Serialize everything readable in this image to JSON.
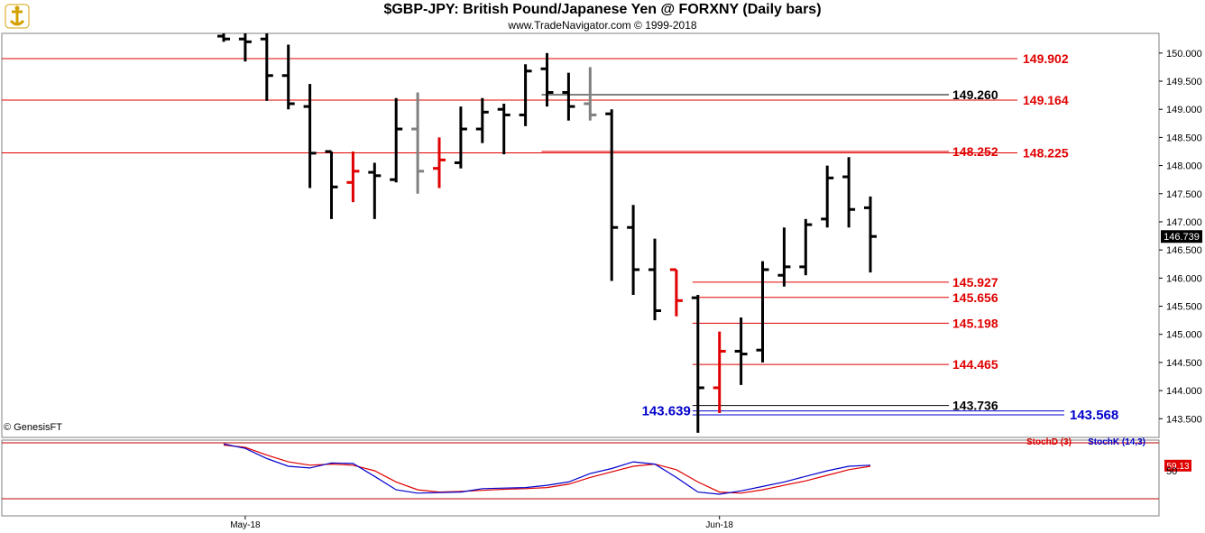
{
  "title": "$GBP-JPY:  British Pound/Japanese Yen @ FORXNY  (Daily bars)",
  "subtitle": "www.TradeNavigator.com © 1999-2018",
  "credit": "© GenesisFT",
  "last_price": "146.739",
  "colors": {
    "bar_up": "#000000",
    "bar_red": "#e00000",
    "bar_gray": "#808080",
    "level_red": "#e00000",
    "level_black": "#000000",
    "level_blue": "#0000cc",
    "stochD": "#e00000",
    "stochK": "#0000cc"
  },
  "chart_data": {
    "type": "ohlc",
    "ylim": [
      143.2,
      150.35
    ],
    "y_ticks": [
      "150.000",
      "149.500",
      "149.000",
      "148.500",
      "148.000",
      "147.500",
      "147.000",
      "146.500",
      "146.000",
      "145.500",
      "145.000",
      "144.500",
      "144.000",
      "143.500"
    ],
    "x_labels": [
      {
        "label": "May-18",
        "index": 1
      },
      {
        "label": "Jun-18",
        "index": 23
      }
    ],
    "bars": [
      {
        "o": 150.3,
        "h": 150.35,
        "l": 150.2,
        "c": 150.25,
        "color": "black"
      },
      {
        "o": 150.25,
        "h": 150.35,
        "l": 149.85,
        "c": 150.2,
        "color": "black"
      },
      {
        "o": 150.25,
        "h": 150.35,
        "l": 149.15,
        "c": 149.6,
        "color": "black"
      },
      {
        "o": 149.6,
        "h": 150.15,
        "l": 149.0,
        "c": 149.1,
        "color": "black"
      },
      {
        "o": 149.05,
        "h": 149.45,
        "l": 147.6,
        "c": 148.22,
        "color": "black"
      },
      {
        "o": 148.25,
        "h": 148.25,
        "l": 147.05,
        "c": 147.62,
        "color": "black"
      },
      {
        "o": 147.7,
        "h": 148.25,
        "l": 147.35,
        "c": 147.9,
        "color": "red"
      },
      {
        "o": 147.88,
        "h": 148.05,
        "l": 147.05,
        "c": 147.82,
        "color": "black"
      },
      {
        "o": 147.75,
        "h": 149.2,
        "l": 147.7,
        "c": 148.65,
        "color": "black"
      },
      {
        "o": 148.65,
        "h": 149.3,
        "l": 147.5,
        "c": 147.9,
        "color": "gray"
      },
      {
        "o": 147.95,
        "h": 148.5,
        "l": 147.6,
        "c": 148.1,
        "color": "red"
      },
      {
        "o": 148.05,
        "h": 149.05,
        "l": 147.95,
        "c": 148.65,
        "color": "black"
      },
      {
        "o": 148.65,
        "h": 149.2,
        "l": 148.4,
        "c": 148.95,
        "color": "black"
      },
      {
        "o": 149.0,
        "h": 149.1,
        "l": 148.2,
        "c": 148.9,
        "color": "black"
      },
      {
        "o": 148.9,
        "h": 149.8,
        "l": 148.7,
        "c": 149.68,
        "color": "black"
      },
      {
        "o": 149.72,
        "h": 150.0,
        "l": 149.05,
        "c": 149.3,
        "color": "black"
      },
      {
        "o": 149.3,
        "h": 149.65,
        "l": 148.8,
        "c": 149.05,
        "color": "black"
      },
      {
        "o": 149.1,
        "h": 149.75,
        "l": 148.8,
        "c": 148.9,
        "color": "gray"
      },
      {
        "o": 148.92,
        "h": 149.0,
        "l": 145.95,
        "c": 146.9,
        "color": "black"
      },
      {
        "o": 146.9,
        "h": 147.3,
        "l": 145.7,
        "c": 146.15,
        "color": "black"
      },
      {
        "o": 146.15,
        "h": 146.7,
        "l": 145.25,
        "c": 145.42,
        "color": "black"
      },
      {
        "o": 146.15,
        "h": 146.15,
        "l": 145.32,
        "c": 145.6,
        "color": "red"
      },
      {
        "o": 145.65,
        "h": 145.7,
        "l": 143.25,
        "c": 144.05,
        "color": "black"
      },
      {
        "o": 144.05,
        "h": 145.05,
        "l": 143.6,
        "c": 144.7,
        "color": "red"
      },
      {
        "o": 144.7,
        "h": 145.3,
        "l": 144.1,
        "c": 144.65,
        "color": "black"
      },
      {
        "o": 144.72,
        "h": 146.3,
        "l": 144.5,
        "c": 146.15,
        "color": "black"
      },
      {
        "o": 146.05,
        "h": 146.9,
        "l": 145.85,
        "c": 146.2,
        "color": "black"
      },
      {
        "o": 146.2,
        "h": 147.05,
        "l": 146.05,
        "c": 146.95,
        "color": "black"
      },
      {
        "o": 147.05,
        "h": 148.0,
        "l": 146.9,
        "c": 147.78,
        "color": "black"
      },
      {
        "o": 147.8,
        "h": 148.15,
        "l": 146.9,
        "c": 147.22,
        "color": "black"
      },
      {
        "o": 147.25,
        "h": 147.45,
        "l": 146.1,
        "c": 146.74,
        "color": "black"
      }
    ],
    "levels": [
      {
        "value": 149.902,
        "label": "149.902",
        "color": "red",
        "start": 0,
        "label_side": "right"
      },
      {
        "value": 149.26,
        "label": "149.260",
        "color": "black",
        "start": 15,
        "label_side": "mid"
      },
      {
        "value": 149.164,
        "label": "149.164",
        "color": "red",
        "start": 0,
        "label_side": "right"
      },
      {
        "value": 148.252,
        "label": "148.252",
        "color": "red",
        "start": 15,
        "label_side": "mid"
      },
      {
        "value": 148.225,
        "label": "148.225",
        "color": "red",
        "start": 0,
        "label_side": "right"
      },
      {
        "value": 145.927,
        "label": "145.927",
        "color": "red",
        "start": 22,
        "label_side": "mid"
      },
      {
        "value": 145.656,
        "label": "145.656",
        "color": "red",
        "start": 22,
        "label_side": "mid"
      },
      {
        "value": 145.198,
        "label": "145.198",
        "color": "red",
        "start": 22,
        "label_side": "mid"
      },
      {
        "value": 144.465,
        "label": "144.465",
        "color": "red",
        "start": 22,
        "label_side": "mid"
      },
      {
        "value": 143.736,
        "label": "143.736",
        "color": "black",
        "start": 22,
        "label_side": "mid"
      },
      {
        "value": 143.639,
        "label": "143.639",
        "color": "blue",
        "start": 22,
        "label_side": "left"
      },
      {
        "value": 143.568,
        "label": "143.568",
        "color": "blue",
        "start": 22,
        "label_side": "right"
      }
    ],
    "stochastic": {
      "legend_d": "StochD (3)",
      "legend_k": "StochK (14,3)",
      "last_value": "59.13",
      "tick": "50",
      "ylim": [
        0,
        100
      ],
      "stochK": [
        98,
        90,
        72,
        58,
        55,
        64,
        63,
        40,
        16,
        10,
        11,
        12,
        18,
        19,
        20,
        24,
        30,
        45,
        54,
        66,
        62,
        38,
        12,
        8,
        14,
        22,
        30,
        40,
        50,
        58,
        60
      ],
      "stochD": [
        96,
        92,
        78,
        66,
        60,
        62,
        60,
        50,
        30,
        16,
        12,
        13,
        15,
        17,
        18,
        20,
        26,
        38,
        48,
        58,
        62,
        52,
        30,
        12,
        10,
        16,
        24,
        32,
        42,
        52,
        58
      ]
    }
  }
}
